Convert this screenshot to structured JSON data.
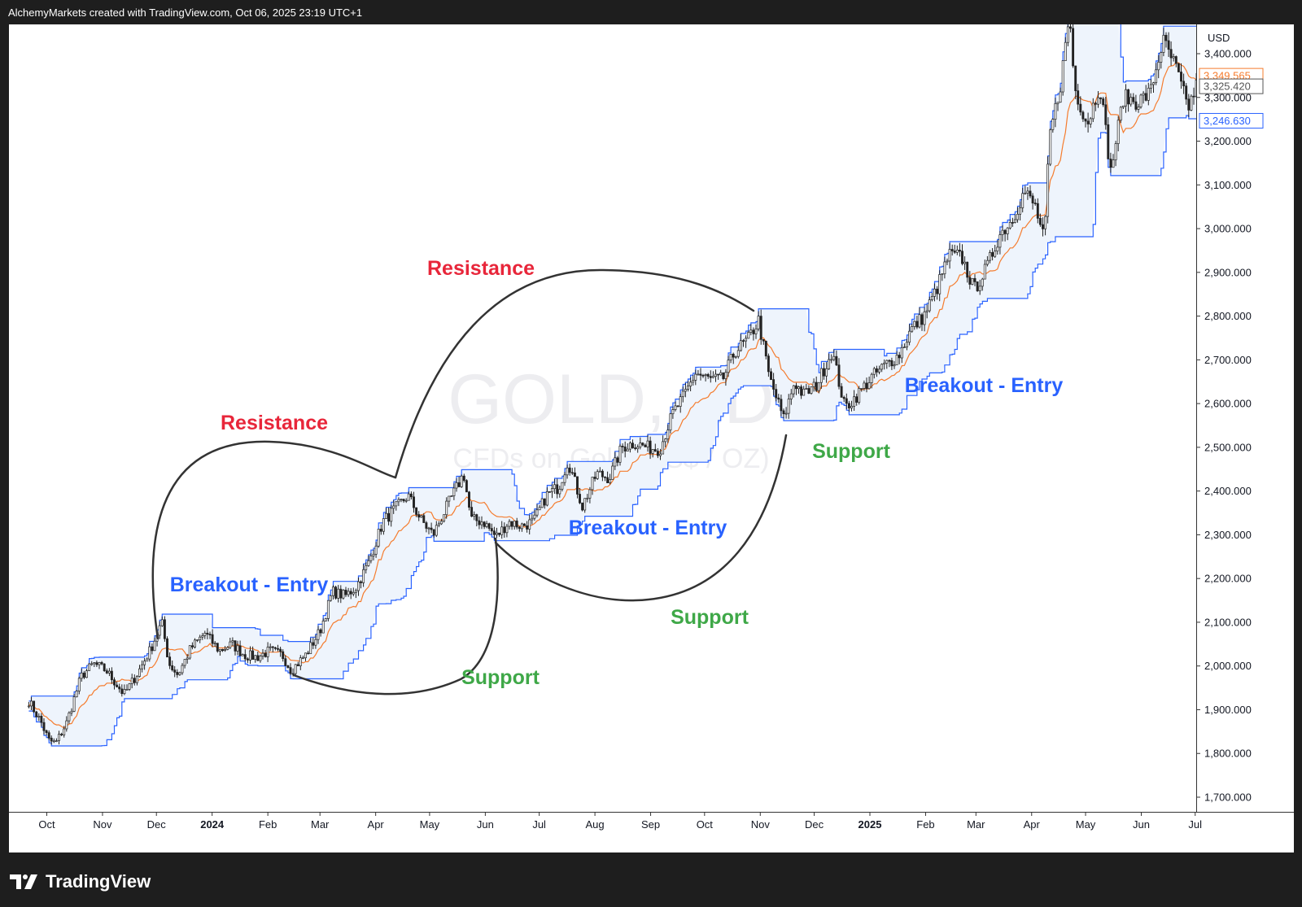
{
  "header": {
    "attribution": "AlchemyMarkets created with TradingView.com, Oct 06, 2025 23:19 UTC+1"
  },
  "footer": {
    "brand": "TradingView"
  },
  "chart_data": {
    "type": "candlestick",
    "watermark_symbol": "GOLD, 1D",
    "watermark_description": "CFDs on Gold (US$ / OZ)",
    "currency": "USD",
    "y_ticks": [
      1700,
      1800,
      1900,
      2000,
      2100,
      2200,
      2300,
      2400,
      2500,
      2600,
      2700,
      2800,
      2900,
      3000,
      3100,
      3200,
      3300,
      3400
    ],
    "y_tick_labels": [
      "1,700.000",
      "1,800.000",
      "1,900.000",
      "2,000.000",
      "2,100.000",
      "2,200.000",
      "2,300.000",
      "2,400.000",
      "2,500.000",
      "2,600.000",
      "2,700.000",
      "2,800.000",
      "2,900.000",
      "3,000.000",
      "3,100.000",
      "3,200.000",
      "3,300.000",
      "3,400.000"
    ],
    "ylim": [
      1665,
      3470
    ],
    "x_ticks": [
      {
        "label": "Oct",
        "bold": false
      },
      {
        "label": "Nov",
        "bold": false
      },
      {
        "label": "Dec",
        "bold": false
      },
      {
        "label": "2024",
        "bold": true
      },
      {
        "label": "Feb",
        "bold": false
      },
      {
        "label": "Mar",
        "bold": false
      },
      {
        "label": "Apr",
        "bold": false
      },
      {
        "label": "May",
        "bold": false
      },
      {
        "label": "Jun",
        "bold": false
      },
      {
        "label": "Jul",
        "bold": false
      },
      {
        "label": "Aug",
        "bold": false
      },
      {
        "label": "Sep",
        "bold": false
      },
      {
        "label": "Oct",
        "bold": false
      },
      {
        "label": "Nov",
        "bold": false
      },
      {
        "label": "Dec",
        "bold": false
      },
      {
        "label": "2025",
        "bold": true
      },
      {
        "label": "Feb",
        "bold": false
      },
      {
        "label": "Mar",
        "bold": false
      },
      {
        "label": "Apr",
        "bold": false
      },
      {
        "label": "May",
        "bold": false
      },
      {
        "label": "Jun",
        "bold": false
      },
      {
        "label": "Jul",
        "bold": false
      }
    ],
    "price_labels": [
      {
        "value": 3349.565,
        "text": "3,349.565",
        "color": "#f57c2e"
      },
      {
        "value": 3325.42,
        "text": "3,325.420",
        "color": "#555555"
      },
      {
        "value": 3246.63,
        "text": "3,246.630",
        "color": "#2962ff"
      }
    ],
    "colors": {
      "channel_line": "#2962ff",
      "channel_fill": "#eef4fc",
      "midline": "#f57c2e",
      "candle": "#222222",
      "resistance": "#e8263a",
      "support": "#3fa848",
      "breakout": "#2962ff",
      "curve": "#333333"
    },
    "annotations": [
      {
        "text": "Resistance",
        "kind": "resistance"
      },
      {
        "text": "Resistance",
        "kind": "resistance"
      },
      {
        "text": "Breakout - Entry",
        "kind": "breakout"
      },
      {
        "text": "Breakout - Entry",
        "kind": "breakout"
      },
      {
        "text": "Breakout - Entry",
        "kind": "breakout"
      },
      {
        "text": "Support",
        "kind": "support"
      },
      {
        "text": "Support",
        "kind": "support"
      },
      {
        "text": "Support",
        "kind": "support"
      }
    ],
    "price_path": [
      [
        "2023-09-21",
        1920
      ],
      [
        "2023-09-28",
        1870
      ],
      [
        "2023-10-02",
        1830
      ],
      [
        "2023-10-06",
        1823
      ],
      [
        "2023-10-12",
        1870
      ],
      [
        "2023-10-20",
        1975
      ],
      [
        "2023-10-27",
        2005
      ],
      [
        "2023-11-03",
        1990
      ],
      [
        "2023-11-13",
        1935
      ],
      [
        "2023-11-20",
        1980
      ],
      [
        "2023-11-28",
        2040
      ],
      [
        "2023-12-04",
        2100
      ],
      [
        "2023-12-08",
        2005
      ],
      [
        "2023-12-13",
        1980
      ],
      [
        "2023-12-20",
        2040
      ],
      [
        "2023-12-28",
        2075
      ],
      [
        "2024-01-05",
        2035
      ],
      [
        "2024-01-12",
        2050
      ],
      [
        "2024-01-19",
        2025
      ],
      [
        "2024-01-26",
        2020
      ],
      [
        "2024-02-02",
        2035
      ],
      [
        "2024-02-09",
        2025
      ],
      [
        "2024-02-14",
        1990
      ],
      [
        "2024-02-22",
        2025
      ],
      [
        "2024-03-01",
        2080
      ],
      [
        "2024-03-08",
        2170
      ],
      [
        "2024-03-15",
        2160
      ],
      [
        "2024-03-21",
        2180
      ],
      [
        "2024-03-28",
        2235
      ],
      [
        "2024-04-05",
        2330
      ],
      [
        "2024-04-12",
        2360
      ],
      [
        "2024-04-19",
        2390
      ],
      [
        "2024-04-26",
        2335
      ],
      [
        "2024-05-03",
        2300
      ],
      [
        "2024-05-10",
        2360
      ],
      [
        "2024-05-17",
        2415
      ],
      [
        "2024-05-20",
        2440
      ],
      [
        "2024-05-24",
        2335
      ],
      [
        "2024-05-31",
        2330
      ],
      [
        "2024-06-07",
        2295
      ],
      [
        "2024-06-14",
        2330
      ],
      [
        "2024-06-21",
        2320
      ],
      [
        "2024-06-28",
        2330
      ],
      [
        "2024-07-05",
        2390
      ],
      [
        "2024-07-12",
        2410
      ],
      [
        "2024-07-17",
        2470
      ],
      [
        "2024-07-25",
        2365
      ],
      [
        "2024-08-02",
        2440
      ],
      [
        "2024-08-09",
        2430
      ],
      [
        "2024-08-16",
        2500
      ],
      [
        "2024-08-23",
        2510
      ],
      [
        "2024-08-30",
        2500
      ],
      [
        "2024-09-06",
        2495
      ],
      [
        "2024-09-13",
        2575
      ],
      [
        "2024-09-20",
        2620
      ],
      [
        "2024-09-26",
        2670
      ],
      [
        "2024-10-04",
        2655
      ],
      [
        "2024-10-11",
        2655
      ],
      [
        "2024-10-18",
        2720
      ],
      [
        "2024-10-25",
        2745
      ],
      [
        "2024-10-31",
        2790
      ],
      [
        "2024-11-06",
        2660
      ],
      [
        "2024-11-14",
        2565
      ],
      [
        "2024-11-20",
        2650
      ],
      [
        "2024-11-25",
        2620
      ],
      [
        "2024-12-02",
        2640
      ],
      [
        "2024-12-11",
        2720
      ],
      [
        "2024-12-18",
        2590
      ],
      [
        "2024-12-24",
        2615
      ],
      [
        "2025-01-02",
        2660
      ],
      [
        "2025-01-10",
        2690
      ],
      [
        "2025-01-17",
        2710
      ],
      [
        "2025-01-24",
        2770
      ],
      [
        "2025-01-31",
        2800
      ],
      [
        "2025-02-07",
        2860
      ],
      [
        "2025-02-14",
        2940
      ],
      [
        "2025-02-21",
        2935
      ],
      [
        "2025-02-28",
        2860
      ],
      [
        "2025-03-07",
        2910
      ],
      [
        "2025-03-14",
        2985
      ],
      [
        "2025-03-21",
        3020
      ],
      [
        "2025-03-28",
        3085
      ],
      [
        "2025-04-03",
        3050
      ],
      [
        "2025-04-08",
        2970
      ],
      [
        "2025-04-11",
        3210
      ],
      [
        "2025-04-17",
        3330
      ],
      [
        "2025-04-22",
        3490
      ],
      [
        "2025-04-25",
        3320
      ],
      [
        "2025-05-02",
        3240
      ],
      [
        "2025-05-09",
        3330
      ],
      [
        "2025-05-15",
        3130
      ],
      [
        "2025-05-22",
        3300
      ],
      [
        "2025-05-30",
        3290
      ],
      [
        "2025-06-06",
        3310
      ],
      [
        "2025-06-13",
        3430
      ],
      [
        "2025-06-20",
        3370
      ],
      [
        "2025-06-27",
        3275
      ],
      [
        "2025-07-03",
        3340
      ],
      [
        "2025-07-07",
        3330
      ]
    ]
  }
}
